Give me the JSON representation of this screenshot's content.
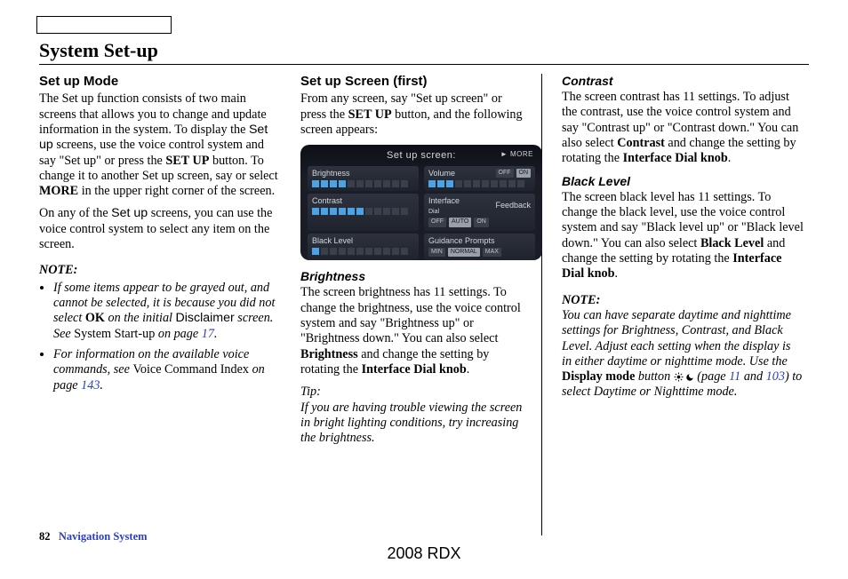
{
  "page_title": "System Set-up",
  "footer": {
    "page_num": "82",
    "section": "Navigation System",
    "model": "2008 RDX"
  },
  "col1": {
    "heading": "Set up Mode",
    "p1a": "The Set up function consists of two main screens that allows you to change and update information in the system. To display the ",
    "setup_sans": "Set up",
    "p1b": " screens, use the voice control system and say \"Set up\" or press the ",
    "setup_btn": "SET UP",
    "p1c": " button. To change it to another Set up screen, say or select ",
    "more": "MORE",
    "p1d": " in the upper right corner of the screen.",
    "p2a": "On any of the ",
    "p2b": " screens, you can use the voice control system to select any item on the screen.",
    "note_head": "NOTE:",
    "li1a": "If some items appear to be grayed out, and cannot be selected, it is because you did not select ",
    "ok": "OK",
    "li1b": " on the initial ",
    "disclaimer": "Disclaimer",
    "li1c": " screen. See ",
    "li1d": "System Start-up",
    "li1e": " on page ",
    "li1pg": "17",
    "li1f": ".",
    "li2a": "For information on the available voice commands, see ",
    "li2b": "Voice Command Index",
    "li2c": " on page ",
    "li2pg": "143",
    "li2d": "."
  },
  "col2": {
    "heading": "Set up Screen (first)",
    "p1a": "From any screen, say \"Set up screen\" or press the ",
    "setup_btn": "SET UP",
    "p1b": " button, and the following screen appears:",
    "screenshot": {
      "title": "Set up screen:",
      "more": "► MORE",
      "cells": [
        {
          "label": "Brightness",
          "type": "bars",
          "value": 4,
          "max": 11
        },
        {
          "label": "Volume",
          "type": "bars",
          "value": 3,
          "max": 11,
          "side_opts": [
            "OFF",
            "ON"
          ],
          "side_sel": 1
        },
        {
          "label": "Contrast",
          "type": "bars",
          "value": 6,
          "max": 11
        },
        {
          "label": "Interface Dial Feedback",
          "type": "opts",
          "opts": [
            "OFF",
            "AUTO",
            "ON"
          ],
          "sel": 1,
          "split_label": true,
          "label_a": "Interface",
          "label_b": "Feedback",
          "label_c": "Dial"
        },
        {
          "label": "Black Level",
          "type": "bars",
          "value": 1,
          "max": 11
        },
        {
          "label": "Guidance Prompts",
          "type": "opts",
          "opts": [
            "MIN",
            "NORMAL",
            "MAX"
          ],
          "sel": 1
        }
      ]
    },
    "brightness_head": "Brightness",
    "bright_a": "The screen brightness has 11 settings. To change the brightness, use the voice control system and say \"Brightness up\" or \"Brightness down.\" You can also select ",
    "brightness_bold": "Brightness",
    "bright_b": " and change the setting by rotating the ",
    "knob": "Interface Dial knob",
    "bright_c": ".",
    "tip_head": "Tip:",
    "tip_body": "If you are having trouble viewing the screen in bright lighting conditions, try increasing the brightness."
  },
  "col3": {
    "contrast_head": "Contrast",
    "contrast_a": "The screen contrast has 11 settings. To adjust the contrast, use the voice control system and say \"Contrast up\" or \"Contrast down.\" You can also select ",
    "contrast_bold": "Contrast",
    "contrast_b": " and change the setting by rotating the ",
    "knob": "Interface Dial knob",
    "contrast_c": ".",
    "black_head": "Black Level",
    "black_a": "The screen black level has 11 settings. To change the black level, use the voice control system and say \"Black level up\" or \"Black level down.\" You can also select ",
    "black_bold": "Black Level",
    "black_b": " and change the setting by rotating the ",
    "black_c": ".",
    "note_head": "NOTE:",
    "note_a": "You can have separate daytime and nighttime settings for Brightness, Contrast, and Black Level. Adjust each setting when the display is in either daytime or nighttime mode. Use the ",
    "display_mode": "Display mode",
    "note_b": " button ",
    "note_c": " (page ",
    "pg11": "11",
    "note_d": " and ",
    "pg103": "103",
    "note_e": ") to select Daytime or Nighttime mode."
  }
}
